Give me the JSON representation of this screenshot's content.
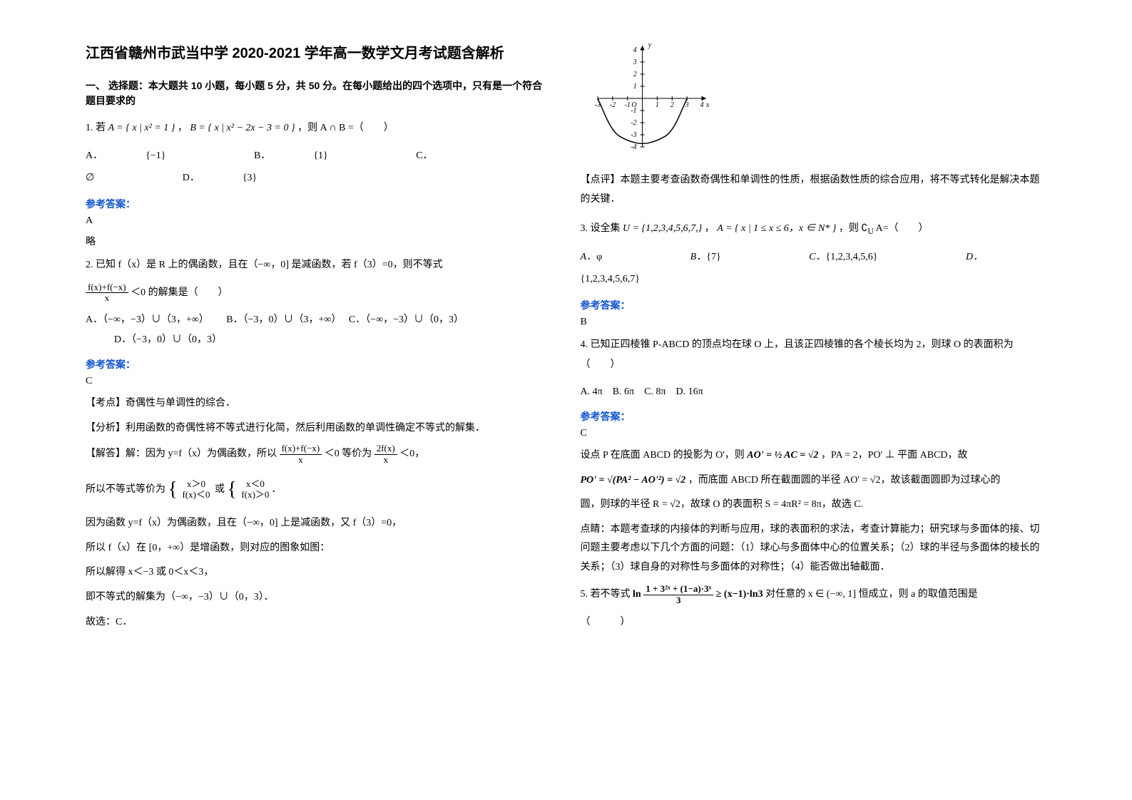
{
  "title": "江西省赣州市武当中学 2020-2021 学年高一数学文月考试题含解析",
  "section_intro": "一、 选择题：本大题共 10 小题，每小题 5 分，共 50 分。在每小题给出的四个选项中，只有是一个符合题目要求的",
  "q1": {
    "stem_pre": "1. 若",
    "setA": "A = { x | x² = 1 }",
    "sep": "，",
    "setB": "B = { x | x² − 2x − 3 = 0 }",
    "stem_post": "，则 A ∩ B =（　　）",
    "optA_label": "A．",
    "optA": "{−1}",
    "optB_label": "B．",
    "optB": "{1}",
    "optC_label": "C．",
    "optC": "∅",
    "optD_label": "D．",
    "optD": "{3}",
    "ans_label": "参考答案：",
    "ans": "A",
    "note": "略"
  },
  "q2": {
    "stem1": "2. 已知 f（x）是 R 上的偶函数，且在（−∞，0] 是减函数，若 f（3）=0，则不等式",
    "frac_num": "f(x)+f(−x)",
    "frac_den": "x",
    "lt": "＜0",
    "stem2": "的解集是（　　）",
    "optA": "A．（−∞，−3）∪（3，+∞）",
    "optB": "B．（−3，0）∪（3，+∞）",
    "optC": "C．（−∞，−3）∪（0，3）",
    "optD": "D．（−3，0）∪（0，3）",
    "ans_label": "参考答案：",
    "ans": "C",
    "tag_kd": "【考点】奇偶性与单调性的综合．",
    "tag_fx": "【分析】利用函数的奇偶性将不等式进行化简，然后利用函数的单调性确定不等式的解集．",
    "sol_pre": "【解答】解：因为 y=f（x）为偶函数，所以",
    "sol_num": "f(x)+f(−x)",
    "sol_den": "x",
    "sol_lt": "＜0",
    "sol_mid": "等价为",
    "sol_num2": "2f(x)",
    "sol_den2": "x",
    "sol_post": "＜0，",
    "sol_line2a": "所以不等式等价为",
    "case1a": "x＞0",
    "case1b": "f(x)＜0",
    "or": "或",
    "case2a": "x＜0",
    "case2b": "f(x)＞0",
    "sol_line3": "因为函数 y=f（x）为偶函数，且在（−∞，0] 上是减函数，又 f（3）=0，",
    "sol_line4": "所以 f（x）在 [0，+∞）是增函数，则对应的图象如图：",
    "sol_line5": "所以解得 x＜−3 或 0＜x＜3，",
    "sol_line6": "即不等式的解集为（−∞，−3）∪（0，3）．",
    "sol_line7": "故选：C．"
  },
  "graph": {
    "x_min": -3,
    "x_max": 4,
    "y_min": -4,
    "y_max": 4,
    "x_ticks": [
      -3,
      -2,
      -1,
      1,
      2,
      3,
      4
    ],
    "y_ticks": [
      -4,
      -3,
      -2,
      -1,
      1,
      2,
      3,
      4
    ],
    "axis_color": "#000000",
    "curve_color": "#000000",
    "width": 180,
    "height": 170,
    "points": [
      [
        -3,
        0
      ],
      [
        -2,
        -2.8
      ],
      [
        -1,
        -3.5
      ],
      [
        0,
        -3.8
      ],
      [
        1,
        -3.5
      ],
      [
        2,
        -2.8
      ],
      [
        3,
        0
      ]
    ]
  },
  "comment2": "【点评】本题主要考查函数奇偶性和单调性的性质，根据函数性质的综合应用，将不等式转化是解决本题的关键．",
  "q3": {
    "stem_pre": "3. 设全集",
    "U": "U = {1,2,3,4,5,6,7,}",
    "sep1": "，",
    "A": "A = { x | 1 ≤ x ≤ 6，x ∈ N* }",
    "stem_post": "，则 ∁",
    "sub": "U",
    "stem_post2": " A=（　　）",
    "optA_label": "A．",
    "optA": "φ",
    "optB_label": "B．",
    "optB": "{7}",
    "optC_label": "C．",
    "optC": "{1,2,3,4,5,6}",
    "optD_label": "D．",
    "optD": "{1,2,3,4,5,6,7}",
    "ans_label": "参考答案：",
    "ans": "B"
  },
  "q4": {
    "stem": "4. 已知正四棱锥 P-ABCD 的顶点均在球 O 上，且该正四棱锥的各个棱长均为 2，则球 O 的表面积为（　　）",
    "options": "A. 4π　B. 6π　C. 8π　D. 16π",
    "ans_label": "参考答案：",
    "ans": "C",
    "sol1a": "设点 P 在底面 ABCD 的投影为 O'，则",
    "sol1_eq": "AO' = ½ AC = √2",
    "sol1b": "，PA = 2，PO' ⊥ 平面 ABCD，故",
    "sol2_eq": "PO' = √(PA² − AO'²) = √2",
    "sol2b": "，而底面 ABCD 所在截面圆的半径 AO' = √2，故该截面圆即为过球心的",
    "sol3": "圆，则球的半径 R = √2，故球 O 的表面积 S = 4πR² = 8π，故选 C.",
    "note": "点睛：本题考查球的内接体的判断与应用，球的表面积的求法，考查计算能力；研究球与多面体的接、切问题主要考虑以下几个方面的问题：（1）球心与多面体中心的位置关系；（2）球的半径与多面体的棱长的关系；（3）球自身的对称性与多面体的对称性；（4）能否做出轴截面．"
  },
  "q5": {
    "stem_pre": "5. 若不等式",
    "frac_num": "1 + 3²ˣ + (1−a)·3ˣ",
    "frac_den": "3",
    "ln_pre": "ln",
    "geq": " ≥ (x−1)·ln3",
    "stem_post": "对任意的 x ∈ (−∞, 1] 恒成立，则 a 的取值范围是",
    "tail": "（　　　）"
  }
}
